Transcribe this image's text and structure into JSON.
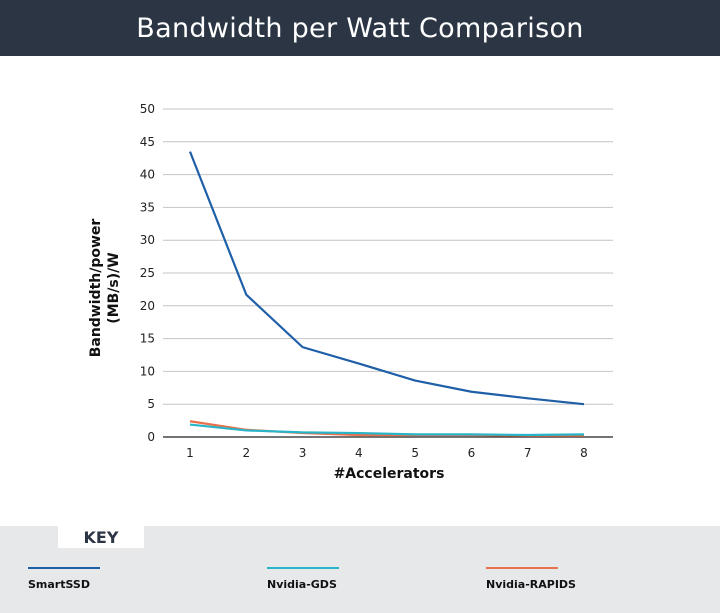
{
  "title": "Bandwidth per Watt Comparison",
  "chart_data": {
    "type": "line",
    "title": "Bandwidth per Watt Comparison",
    "xlabel": "#Accelerators",
    "ylabel_lines": [
      "Bandwidth/power",
      "(MB/s)/W"
    ],
    "x": [
      1,
      2,
      3,
      4,
      5,
      6,
      7,
      8
    ],
    "yticks": [
      0,
      5,
      10,
      15,
      20,
      25,
      30,
      35,
      40,
      45,
      50
    ],
    "ylim": [
      0,
      50
    ],
    "grid": true,
    "legend_position": "bottom",
    "series": [
      {
        "name": "SmartSSD",
        "color": "#1f5fa8",
        "values": [
          43.5,
          21.7,
          13.7,
          11.2,
          8.6,
          6.9,
          5.9,
          5.0
        ]
      },
      {
        "name": "Nvidia-GDS",
        "color": "#29b5c9",
        "values": [
          1.9,
          1.0,
          0.7,
          0.6,
          0.4,
          0.4,
          0.3,
          0.4
        ]
      },
      {
        "name": "Nvidia-RAPIDS",
        "color": "#e8704a",
        "values": [
          2.4,
          1.1,
          0.6,
          0.3,
          0.3,
          0.3,
          0.2,
          0.2
        ]
      }
    ]
  },
  "legend": {
    "heading": "KEY",
    "items": [
      {
        "label": "SmartSSD",
        "color": "#1f5fa8"
      },
      {
        "label": "Nvidia-GDS",
        "color": "#29b5c9"
      },
      {
        "label": "Nvidia-RAPIDS",
        "color": "#e8704a"
      }
    ]
  }
}
